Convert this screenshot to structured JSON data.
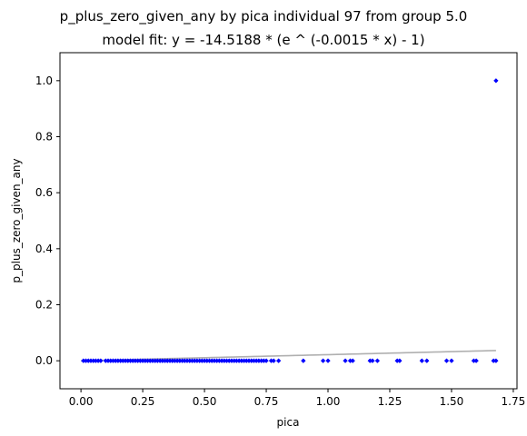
{
  "chart_data": {
    "type": "scatter",
    "title": "p_plus_zero_given_any by pica individual 97 from group 5.0",
    "subtitle": "model fit: y = -14.5188 * (e ^ (-0.0015 * x) - 1)",
    "xlabel": "pica",
    "ylabel": "p_plus_zero_given_any",
    "xlim": [
      -0.085,
      1.765
    ],
    "ylim": [
      -0.1,
      1.1
    ],
    "xticks": [
      0.0,
      0.25,
      0.5,
      0.75,
      1.0,
      1.25,
      1.5,
      1.75
    ],
    "xtick_labels": [
      "0.00",
      "0.25",
      "0.50",
      "0.75",
      "1.00",
      "1.25",
      "1.50",
      "1.75"
    ],
    "yticks": [
      0.0,
      0.2,
      0.4,
      0.6,
      0.8,
      1.0
    ],
    "ytick_labels": [
      "0.0",
      "0.2",
      "0.4",
      "0.6",
      "0.8",
      "1.0"
    ],
    "grid": false,
    "point_color": "#0000ff",
    "fit_color": "#b0b0b0",
    "fit": {
      "a": -14.5188,
      "b": -0.0015,
      "x_range": [
        0.0,
        1.68
      ]
    },
    "points": {
      "x": [
        0.01,
        0.02,
        0.03,
        0.04,
        0.05,
        0.06,
        0.07,
        0.08,
        0.1,
        0.11,
        0.12,
        0.13,
        0.14,
        0.15,
        0.16,
        0.17,
        0.18,
        0.19,
        0.2,
        0.21,
        0.22,
        0.23,
        0.24,
        0.25,
        0.26,
        0.27,
        0.28,
        0.29,
        0.3,
        0.31,
        0.32,
        0.33,
        0.34,
        0.35,
        0.36,
        0.37,
        0.38,
        0.39,
        0.4,
        0.41,
        0.42,
        0.43,
        0.44,
        0.45,
        0.46,
        0.47,
        0.48,
        0.49,
        0.5,
        0.51,
        0.52,
        0.53,
        0.54,
        0.55,
        0.56,
        0.57,
        0.58,
        0.59,
        0.6,
        0.61,
        0.62,
        0.63,
        0.64,
        0.65,
        0.66,
        0.67,
        0.68,
        0.69,
        0.7,
        0.71,
        0.72,
        0.73,
        0.74,
        0.75,
        0.77,
        0.78,
        0.8,
        0.9,
        0.98,
        1.0,
        1.07,
        1.09,
        1.1,
        1.17,
        1.18,
        1.2,
        1.28,
        1.29,
        1.38,
        1.4,
        1.48,
        1.5,
        1.59,
        1.6,
        1.67,
        1.68,
        1.68
      ],
      "y": [
        0,
        0,
        0,
        0,
        0,
        0,
        0,
        0,
        0,
        0,
        0,
        0,
        0,
        0,
        0,
        0,
        0,
        0,
        0,
        0,
        0,
        0,
        0,
        0,
        0,
        0,
        0,
        0,
        0,
        0,
        0,
        0,
        0,
        0,
        0,
        0,
        0,
        0,
        0,
        0,
        0,
        0,
        0,
        0,
        0,
        0,
        0,
        0,
        0,
        0,
        0,
        0,
        0,
        0,
        0,
        0,
        0,
        0,
        0,
        0,
        0,
        0,
        0,
        0,
        0,
        0,
        0,
        0,
        0,
        0,
        0,
        0,
        0,
        0,
        0,
        0,
        0,
        0,
        0,
        0,
        0,
        0,
        0,
        0,
        0,
        0,
        0,
        0,
        0,
        0,
        0,
        0,
        0,
        0,
        0,
        0,
        1.0
      ]
    }
  }
}
